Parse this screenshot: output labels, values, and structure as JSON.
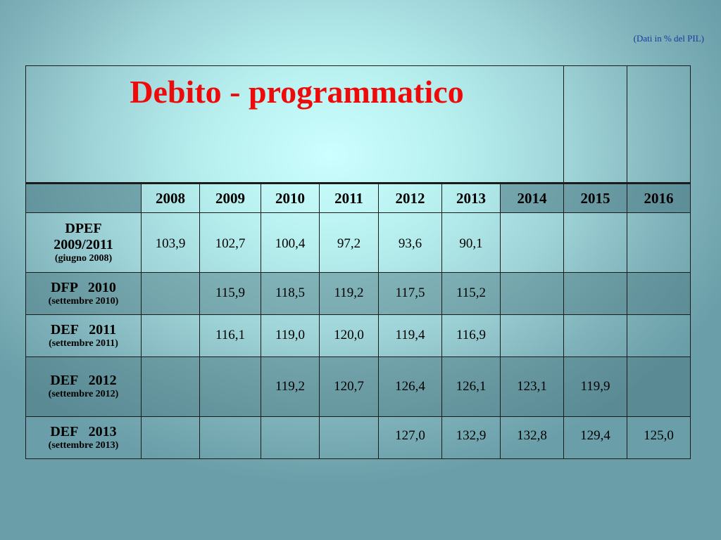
{
  "note": "(Dati in % del PIL)",
  "title": "Debito - programmatico",
  "years": [
    "2008",
    "2009",
    "2010",
    "2011",
    "2012",
    "2013",
    "2014",
    "2015",
    "2016"
  ],
  "rows": [
    {
      "label": "DPEF",
      "label2": "2009/2011",
      "sub": "(giugno 2008)",
      "values": [
        "103,9",
        "102,7",
        "100,4",
        "97,2",
        "93,6",
        "90,1",
        "",
        "",
        ""
      ]
    },
    {
      "label": "DFP   2010",
      "label2": "",
      "sub": "(settembre 2010)",
      "values": [
        "",
        "115,9",
        "118,5",
        "119,2",
        "117,5",
        "115,2",
        "",
        "",
        ""
      ]
    },
    {
      "label": "DEF   2011",
      "label2": "",
      "sub": "(settembre 2011)",
      "values": [
        "",
        "116,1",
        "119,0",
        "120,0",
        "119,4",
        "116,9",
        "",
        "",
        ""
      ]
    },
    {
      "label": "DEF   2012",
      "label2": "",
      "sub": "(settembre 2012)",
      "values": [
        "",
        "",
        "119,2",
        "120,7",
        "126,4",
        "126,1",
        "123,1",
        "119,9",
        ""
      ]
    },
    {
      "label": "DEF   2013",
      "label2": "",
      "sub": "(settembre 2013)",
      "values": [
        "",
        "",
        "",
        "",
        "127,0",
        "132,9",
        "132,8",
        "129,4",
        "125,0"
      ]
    }
  ],
  "colors": {
    "title": "#ee0a0a",
    "note": "#1a3aa0",
    "background": "#b6eeee"
  }
}
